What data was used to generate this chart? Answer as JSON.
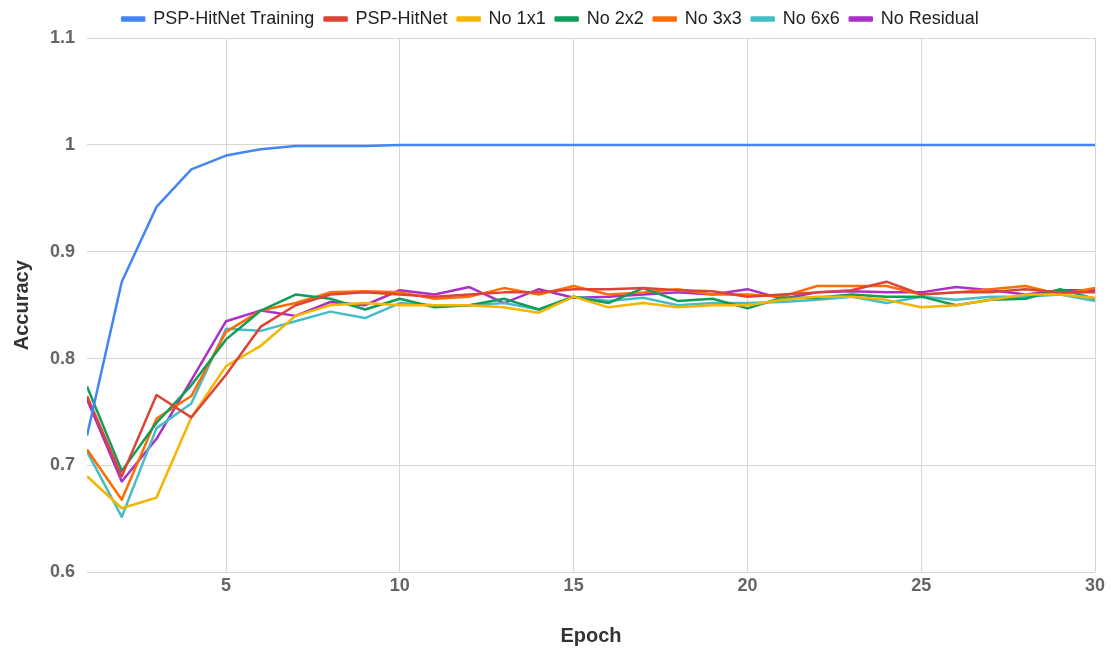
{
  "chart_data": {
    "type": "line",
    "xlabel": "Epoch",
    "ylabel": "Accuracy",
    "x": [
      1,
      2,
      3,
      4,
      5,
      6,
      7,
      8,
      9,
      10,
      11,
      12,
      13,
      14,
      15,
      16,
      17,
      18,
      19,
      20,
      21,
      22,
      23,
      24,
      25,
      26,
      27,
      28,
      29,
      30
    ],
    "xlim": [
      1,
      30
    ],
    "xticks": [
      5,
      10,
      15,
      20,
      25,
      30
    ],
    "ylim": [
      0.6,
      1.1
    ],
    "yticks": [
      0.6,
      0.7,
      0.8,
      0.9,
      1,
      1.1
    ],
    "grid": true,
    "legend": "top",
    "marker": "none",
    "line_style": "solid",
    "series": [
      {
        "name": "PSP-HitNet Training",
        "color": "#4285f4",
        "values": [
          0.728,
          0.872,
          0.942,
          0.977,
          0.99,
          0.996,
          0.999,
          0.999,
          0.999,
          1,
          1,
          1,
          1,
          1,
          1,
          1,
          1,
          1,
          1,
          1,
          1,
          1,
          1,
          1,
          1,
          1,
          1,
          1,
          1,
          1
        ]
      },
      {
        "name": "PSP-HitNet",
        "color": "#db4437",
        "values": [
          0.765,
          0.69,
          0.766,
          0.745,
          0.785,
          0.83,
          0.85,
          0.86,
          0.862,
          0.86,
          0.858,
          0.86,
          0.862,
          0.862,
          0.865,
          0.865,
          0.866,
          0.864,
          0.863,
          0.858,
          0.86,
          0.862,
          0.864,
          0.872,
          0.86,
          0.862,
          0.862,
          0.865,
          0.862,
          0.862
        ]
      },
      {
        "name": "No 1x1",
        "color": "#f4b400",
        "values": [
          0.69,
          0.66,
          0.67,
          0.745,
          0.793,
          0.812,
          0.84,
          0.85,
          0.852,
          0.85,
          0.85,
          0.85,
          0.848,
          0.843,
          0.858,
          0.848,
          0.852,
          0.848,
          0.85,
          0.85,
          0.855,
          0.858,
          0.858,
          0.855,
          0.848,
          0.85,
          0.855,
          0.86,
          0.86,
          0.857
        ]
      },
      {
        "name": "No 2x2",
        "color": "#0f9d58",
        "values": [
          0.774,
          0.695,
          0.74,
          0.775,
          0.818,
          0.845,
          0.86,
          0.856,
          0.846,
          0.856,
          0.848,
          0.85,
          0.856,
          0.846,
          0.858,
          0.852,
          0.866,
          0.854,
          0.856,
          0.847,
          0.857,
          0.857,
          0.86,
          0.858,
          0.858,
          0.85,
          0.855,
          0.856,
          0.865,
          0.856
        ]
      },
      {
        "name": "No 3x3",
        "color": "#ff6d01",
        "values": [
          0.715,
          0.668,
          0.744,
          0.765,
          0.825,
          0.845,
          0.852,
          0.862,
          0.863,
          0.862,
          0.856,
          0.858,
          0.866,
          0.86,
          0.868,
          0.86,
          0.862,
          0.865,
          0.86,
          0.86,
          0.858,
          0.868,
          0.868,
          0.868,
          0.86,
          0.862,
          0.865,
          0.868,
          0.86,
          0.866
        ]
      },
      {
        "name": "No 6x6",
        "color": "#46bdc6",
        "values": [
          0.713,
          0.652,
          0.735,
          0.758,
          0.828,
          0.826,
          0.835,
          0.844,
          0.838,
          0.852,
          0.85,
          0.85,
          0.852,
          0.846,
          0.858,
          0.854,
          0.857,
          0.85,
          0.852,
          0.852,
          0.853,
          0.855,
          0.858,
          0.852,
          0.858,
          0.855,
          0.858,
          0.858,
          0.86,
          0.854
        ]
      },
      {
        "name": "No Residual",
        "color": "#ab30c4",
        "values": [
          0.762,
          0.685,
          0.725,
          0.78,
          0.835,
          0.845,
          0.84,
          0.853,
          0.85,
          0.864,
          0.86,
          0.867,
          0.852,
          0.865,
          0.857,
          0.858,
          0.86,
          0.862,
          0.86,
          0.865,
          0.856,
          0.862,
          0.863,
          0.862,
          0.862,
          0.867,
          0.864,
          0.86,
          0.864,
          0.864
        ]
      }
    ]
  }
}
